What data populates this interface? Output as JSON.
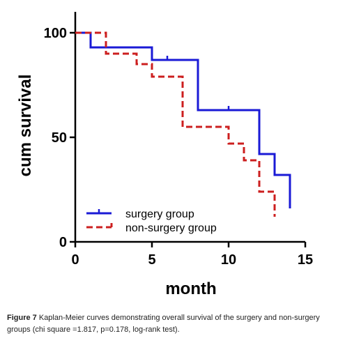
{
  "chart_data": {
    "type": "line",
    "subtype": "kaplan-meier-step",
    "title": "",
    "xlabel": "month",
    "ylabel": "cum survival",
    "xlim": [
      0,
      15
    ],
    "ylim": [
      0,
      100
    ],
    "xticks": [
      0,
      5,
      10,
      15
    ],
    "yticks": [
      0,
      50,
      100
    ],
    "grid": false,
    "legend_position": "bottom-left",
    "series": [
      {
        "name": "surgery group",
        "color": "#1a1ad6",
        "line_style": "solid",
        "steps": [
          {
            "x": 0,
            "y": 100
          },
          {
            "x": 1,
            "y": 93
          },
          {
            "x": 5,
            "y": 87
          },
          {
            "x": 8,
            "y": 63
          },
          {
            "x": 12,
            "y": 42
          },
          {
            "x": 13,
            "y": 32
          },
          {
            "x": 14,
            "y": 16
          }
        ],
        "censored": [
          {
            "x": 6,
            "y": 87
          },
          {
            "x": 10,
            "y": 63
          }
        ]
      },
      {
        "name": "non-surgery group",
        "color": "#cc1f1f",
        "line_style": "dashed",
        "steps": [
          {
            "x": 0,
            "y": 100
          },
          {
            "x": 2,
            "y": 90
          },
          {
            "x": 4,
            "y": 85
          },
          {
            "x": 5,
            "y": 79
          },
          {
            "x": 7,
            "y": 55
          },
          {
            "x": 10,
            "y": 47
          },
          {
            "x": 11,
            "y": 39
          },
          {
            "x": 12,
            "y": 24
          },
          {
            "x": 13,
            "y": 12
          }
        ],
        "censored": []
      }
    ]
  },
  "caption": {
    "label": "Figure 7",
    "text": " Kaplan-Meier curves demonstrating overall survival of the surgery and non-surgery groups (chi square =1.817, p=0.178, log-rank test)."
  }
}
